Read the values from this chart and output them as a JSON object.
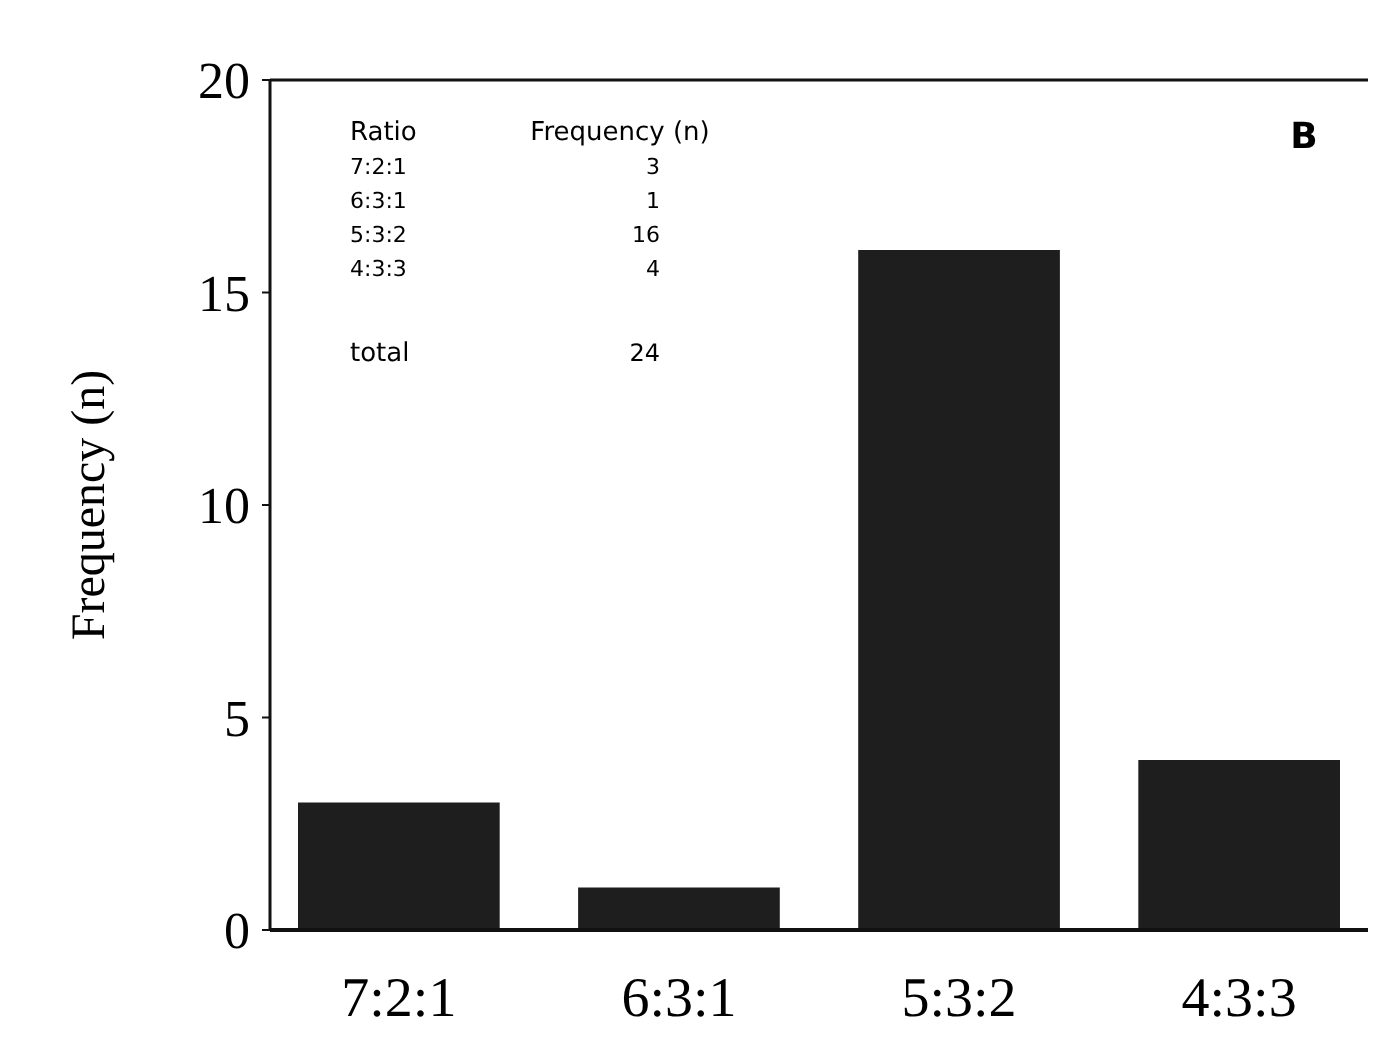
{
  "chart_data": {
    "type": "bar",
    "ylabel": "Frequency (n)",
    "categories": [
      "7:2:1",
      "6:3:1",
      "5:3:2",
      "4:3:3"
    ],
    "values": [
      3,
      1,
      16,
      4
    ],
    "color": "#1e1e1e",
    "ylim": [
      0,
      20
    ],
    "yticks": [
      0,
      5,
      10,
      15,
      20
    ],
    "grid": false,
    "annotations": [
      "Ratio",
      "Frequency (n)",
      "7:2:1",
      "3",
      "6:3:1",
      "1",
      "5:3:2",
      "16",
      "4:3:3",
      "4",
      "total",
      "24",
      "B"
    ]
  }
}
